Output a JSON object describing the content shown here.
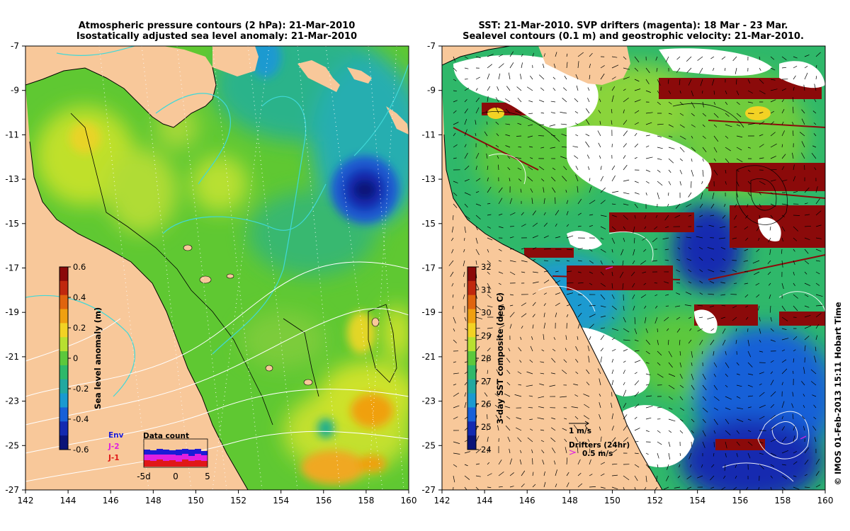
{
  "left_panel": {
    "title_line1": "Atmospheric pressure contours (2 hPa): 21-Mar-2010",
    "title_line2": "Isostatically adjusted sea level anomaly: 21-Mar-2010",
    "x_ticks": [
      "142",
      "144",
      "146",
      "148",
      "150",
      "152",
      "154",
      "156",
      "158",
      "160"
    ],
    "y_ticks": [
      "-7",
      "-9",
      "-11",
      "-13",
      "-15",
      "-17",
      "-19",
      "-21",
      "-23",
      "-25",
      "-27"
    ],
    "colorbar": {
      "label": "Sea level anomaly (m)",
      "ticks": [
        "0.6",
        "0.4",
        "0.2",
        "0",
        "-0.2",
        "-0.4",
        "-0.6"
      ],
      "colors": [
        "#8b0a0a",
        "#c0280e",
        "#e0640e",
        "#f0a010",
        "#f3d224",
        "#b8e030",
        "#5cc83c",
        "#2fb86a",
        "#22a8a0",
        "#1a9ad0",
        "#1860d8",
        "#142ab0",
        "#0a1478"
      ]
    },
    "data_count": {
      "title": "Data count",
      "satellites": [
        {
          "name": "Env",
          "color": "#1b1bd6"
        },
        {
          "name": "J-2",
          "color": "#e020e0"
        },
        {
          "name": "J-1",
          "color": "#e01818"
        }
      ],
      "x_ticks": [
        "-5d",
        "0",
        "5"
      ]
    }
  },
  "right_panel": {
    "title_line1": "SST: 21-Mar-2010. SVP drifters (magenta): 18 Mar - 23 Mar.",
    "title_line2": "Sealevel contours (0.1 m) and geostrophic velocity: 21-Mar-2010.",
    "x_ticks": [
      "142",
      "144",
      "146",
      "148",
      "150",
      "152",
      "154",
      "156",
      "158",
      "160"
    ],
    "y_ticks": [
      "-7",
      "-9",
      "-11",
      "-13",
      "-15",
      "-17",
      "-19",
      "-21",
      "-23",
      "-25",
      "-27"
    ],
    "colorbar": {
      "label": "3-day SST composite (deg C)",
      "ticks": [
        "32",
        "31",
        "30",
        "29",
        "28",
        "27",
        "26",
        "25",
        "24"
      ],
      "colors": [
        "#8b0a0a",
        "#c0280e",
        "#e0640e",
        "#f0a010",
        "#f3d224",
        "#b8e030",
        "#5cc83c",
        "#2fb86a",
        "#22a8a0",
        "#1a9ad0",
        "#1860d8",
        "#142ab0",
        "#0a1478"
      ]
    },
    "velocity_legend": "1 m/s",
    "drifters_legend": "Drifters (24hr)",
    "drifter_speed": "0.5 m/s",
    "credit": "© IMOS 01-Feb-2013 15:11 Hobart Time"
  },
  "colors": {
    "land": "#f8c89a",
    "ocean_base": "#5fc832"
  }
}
